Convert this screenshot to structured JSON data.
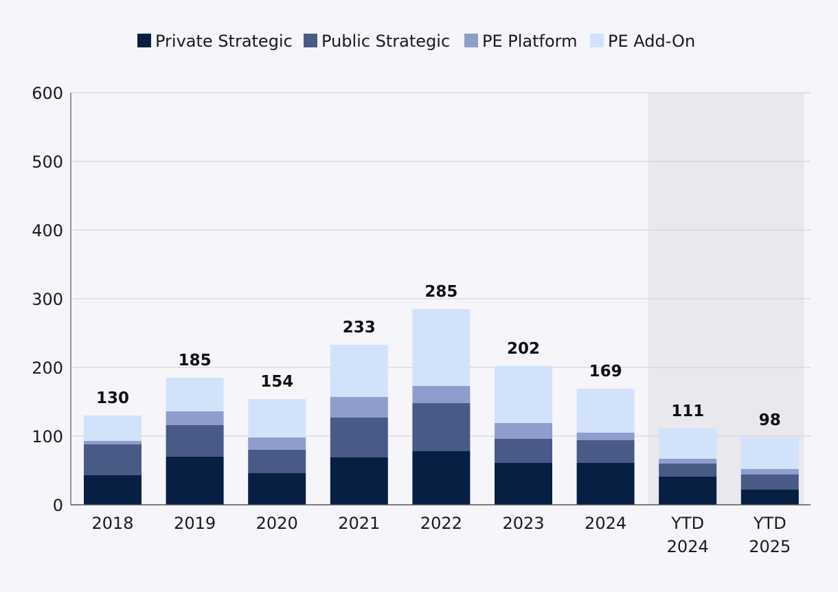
{
  "chart_data": {
    "type": "bar",
    "stacked": true,
    "title": "",
    "xlabel": "",
    "ylabel": "",
    "ylim": [
      0,
      600
    ],
    "yticks": [
      0,
      100,
      200,
      300,
      400,
      500,
      600
    ],
    "grid": true,
    "legend_position": "top-center",
    "categories": [
      [
        "2018"
      ],
      [
        "2019"
      ],
      [
        "2020"
      ],
      [
        "2021"
      ],
      [
        "2022"
      ],
      [
        "2023"
      ],
      [
        "2024"
      ],
      [
        "YTD",
        "2024"
      ],
      [
        "YTD",
        "2025"
      ]
    ],
    "highlighted_categories": [
      7,
      8
    ],
    "highlight_color": "#e9e8ee",
    "totals": [
      130,
      185,
      154,
      233,
      285,
      202,
      169,
      111,
      98
    ],
    "series": [
      {
        "name": "Private Strategic",
        "color": "#061f42",
        "values": [
          43,
          70,
          46,
          69,
          78,
          61,
          61,
          41,
          22
        ]
      },
      {
        "name": "Public Strategic",
        "color": "#4a5a87",
        "values": [
          45,
          46,
          34,
          58,
          70,
          35,
          33,
          19,
          22
        ]
      },
      {
        "name": "PE Platform",
        "color": "#8e9dcb",
        "values": [
          5,
          20,
          18,
          30,
          25,
          23,
          11,
          7,
          8
        ]
      },
      {
        "name": "PE Add-On",
        "color": "#d3e2fb",
        "values": [
          37,
          49,
          56,
          76,
          112,
          83,
          64,
          44,
          46
        ]
      }
    ]
  }
}
